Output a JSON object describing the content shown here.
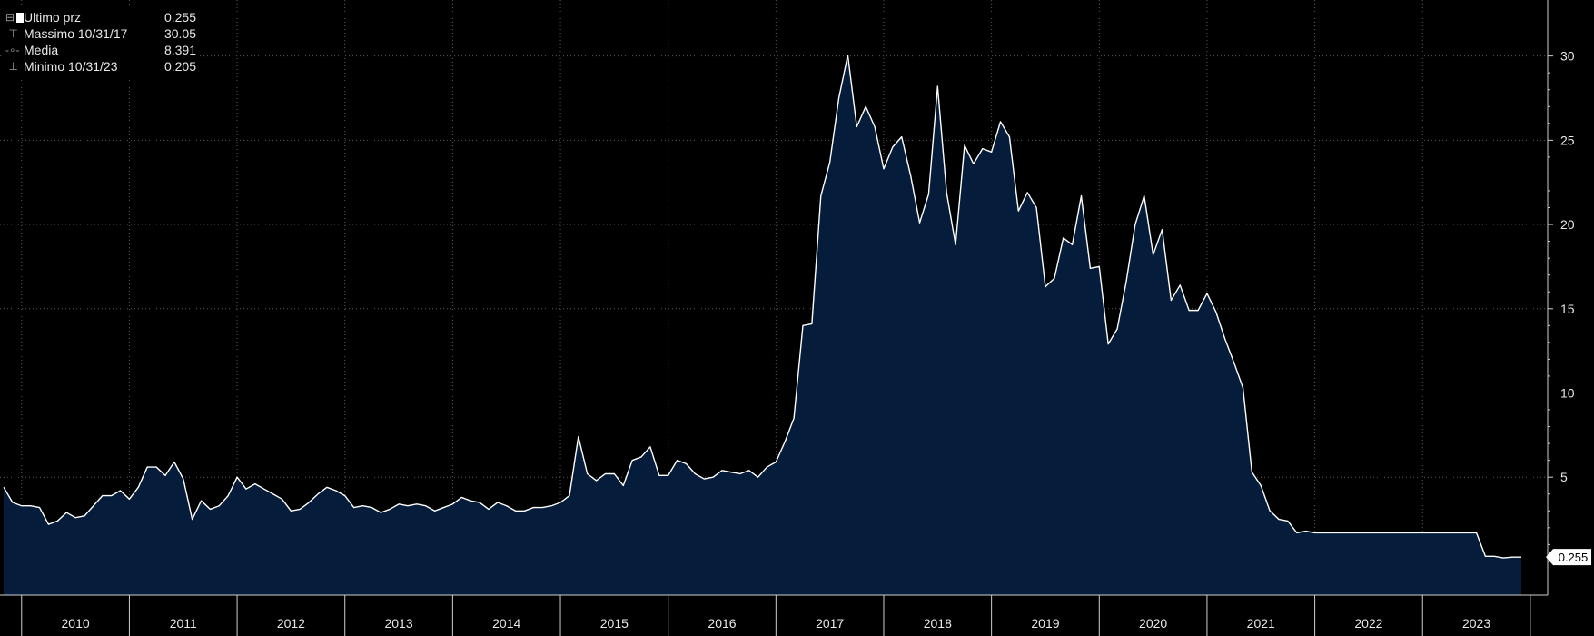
{
  "legend": {
    "items": [
      {
        "label": "Ultimo prz",
        "value": "0.255",
        "icon": "filled-square-icon"
      },
      {
        "label": "Massimo 10/31/17",
        "value": "30.05",
        "icon": "high-marker-icon"
      },
      {
        "label": "Media",
        "value": "8.391",
        "icon": "average-marker-icon"
      },
      {
        "label": "Minimo 10/31/23",
        "value": "0.205",
        "icon": "low-marker-icon"
      }
    ]
  },
  "last_price_label": "0.255",
  "colors": {
    "background": "#000000",
    "area_fill": "#051d3a",
    "line": "#ffffff",
    "grid": "#5a5a5a",
    "text": "#e8e8e8"
  },
  "chart_data": {
    "type": "area",
    "title": "",
    "xlabel": "",
    "ylabel": "",
    "ylim": [
      -2,
      33
    ],
    "yticks": [
      5,
      10,
      15,
      20,
      25,
      30
    ],
    "y_axis_position": "right",
    "grid": true,
    "x_tick_labels": [
      "2010",
      "2011",
      "2012",
      "2013",
      "2014",
      "2015",
      "2016",
      "2017",
      "2018",
      "2019",
      "2020",
      "2021",
      "2022",
      "2023"
    ],
    "x_start": "2009-11",
    "series": [
      {
        "values": [
          4.4,
          3.5,
          3.3,
          3.3,
          3.2,
          2.2,
          2.4,
          2.9,
          2.6,
          2.7,
          3.3,
          3.9,
          3.9,
          4.2,
          3.7,
          4.4,
          5.6,
          5.6,
          5.1,
          5.9,
          4.9,
          2.5,
          3.6,
          3.1,
          3.3,
          3.9,
          5.0,
          4.3,
          4.6,
          4.3,
          4.0,
          3.7,
          3.0,
          3.1,
          3.5,
          4.0,
          4.4,
          4.2,
          3.9,
          3.2,
          3.3,
          3.2,
          2.9,
          3.1,
          3.4,
          3.3,
          3.4,
          3.3,
          3.0,
          3.2,
          3.4,
          3.8,
          3.6,
          3.5,
          3.1,
          3.5,
          3.3,
          3.0,
          3.0,
          3.2,
          3.2,
          3.3,
          3.5,
          3.9,
          7.4,
          5.2,
          4.8,
          5.2,
          5.2,
          4.5,
          6.0,
          6.2,
          6.8,
          5.1,
          5.1,
          6.0,
          5.8,
          5.2,
          4.9,
          5.0,
          5.4,
          5.3,
          5.2,
          5.4,
          5.0,
          5.6,
          5.9,
          7.1,
          8.5,
          14.0,
          14.1,
          21.7,
          23.7,
          27.5,
          30.05,
          25.8,
          27.0,
          25.8,
          23.3,
          24.6,
          25.2,
          22.9,
          20.1,
          21.8,
          28.2,
          21.9,
          18.8,
          24.7,
          23.6,
          24.5,
          24.3,
          26.1,
          25.2,
          20.8,
          21.9,
          21.0,
          16.3,
          16.8,
          19.2,
          18.8,
          21.7,
          17.4,
          17.5,
          12.9,
          13.8,
          16.6,
          20.0,
          21.7,
          18.2,
          19.7,
          15.5,
          16.4,
          14.9,
          14.9,
          15.9,
          14.8,
          13.2,
          11.8,
          10.3,
          5.3,
          4.5,
          3.0,
          2.5,
          2.4,
          1.7,
          1.8,
          1.7,
          1.7,
          1.7,
          1.7,
          1.7,
          1.7,
          1.7,
          1.7,
          1.7,
          1.7,
          1.7,
          1.7,
          1.7,
          1.7,
          1.7,
          1.7,
          1.7,
          1.7,
          1.7,
          0.3,
          0.3,
          0.205,
          0.255,
          0.255
        ]
      }
    ]
  }
}
